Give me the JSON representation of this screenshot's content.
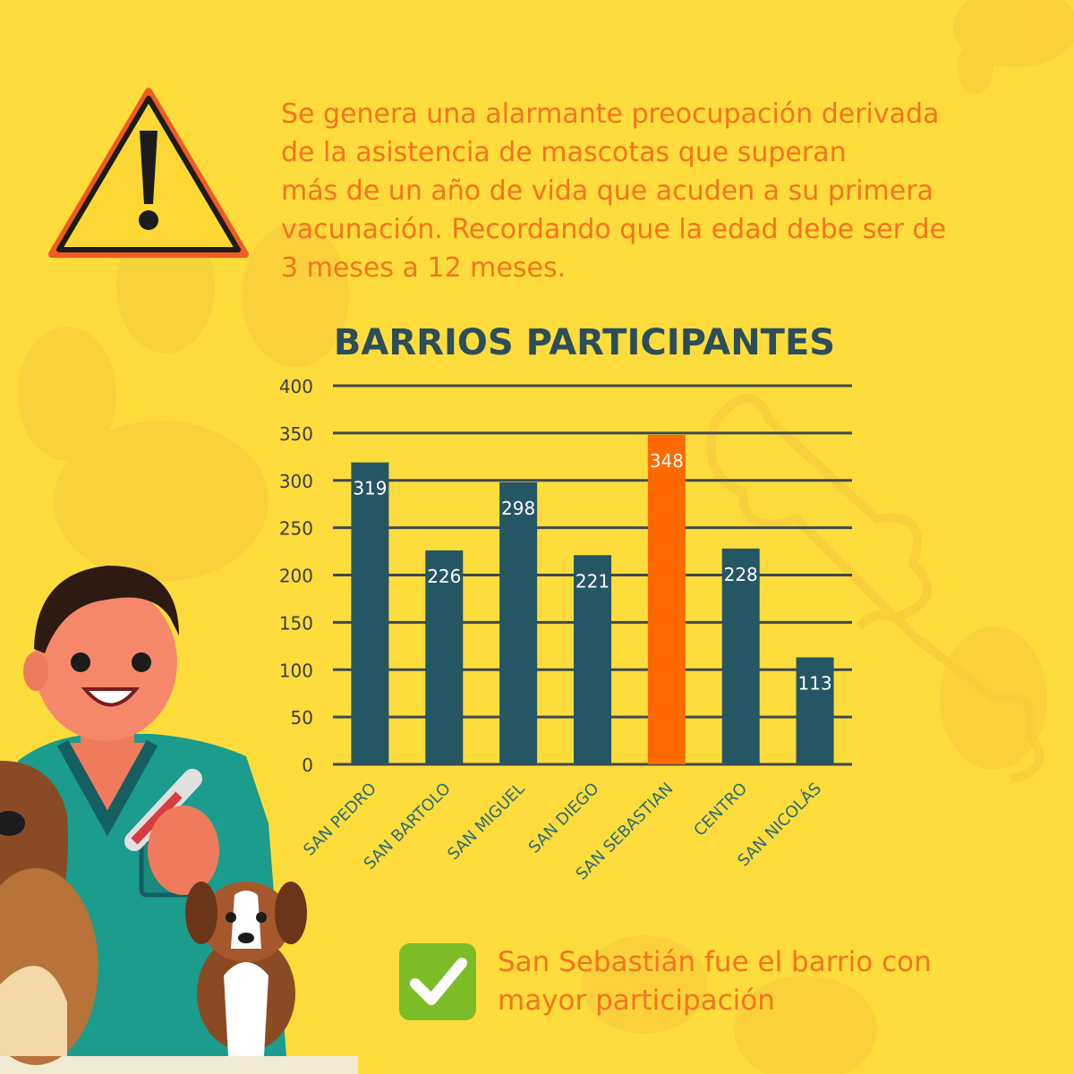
{
  "intro": {
    "lines": [
      "Se genera una alarmante preocupación derivada",
      "de la asistencia de mascotas que superan",
      "más de un año de vida que acuden a su primera",
      "vacunación. Recordando que la edad debe ser de",
      "3 meses a 12 meses."
    ]
  },
  "conclusion": {
    "lines": [
      "San Sebastián fue el barrio con",
      "mayor participación"
    ]
  },
  "icons": {
    "warning": "warning-triangle-icon",
    "check": "check-mark-icon"
  },
  "colors": {
    "background": "#fddc3c",
    "bar": "#255664",
    "highlight_bar": "#ff6a00",
    "text_accent": "#f6731e",
    "title": "#2c4d5a",
    "check": "#7cbd27"
  },
  "chart_data": {
    "type": "bar",
    "title": "BARRIOS PARTICIPANTES",
    "xlabel": "",
    "ylabel": "",
    "categories": [
      "SAN PEDRO",
      "SAN BARTOLO",
      "SAN MIGUEL",
      "SAN DIEGO",
      "SAN SEBASTIAN",
      "CENTRO",
      "SAN NICOLÁS"
    ],
    "values": [
      319,
      226,
      298,
      221,
      348,
      228,
      113
    ],
    "highlight": "SAN SEBASTIAN",
    "ylim": [
      0,
      400
    ],
    "yticks": [
      0,
      50,
      100,
      150,
      200,
      250,
      300,
      350,
      400
    ],
    "grid": true,
    "legend": "none"
  }
}
